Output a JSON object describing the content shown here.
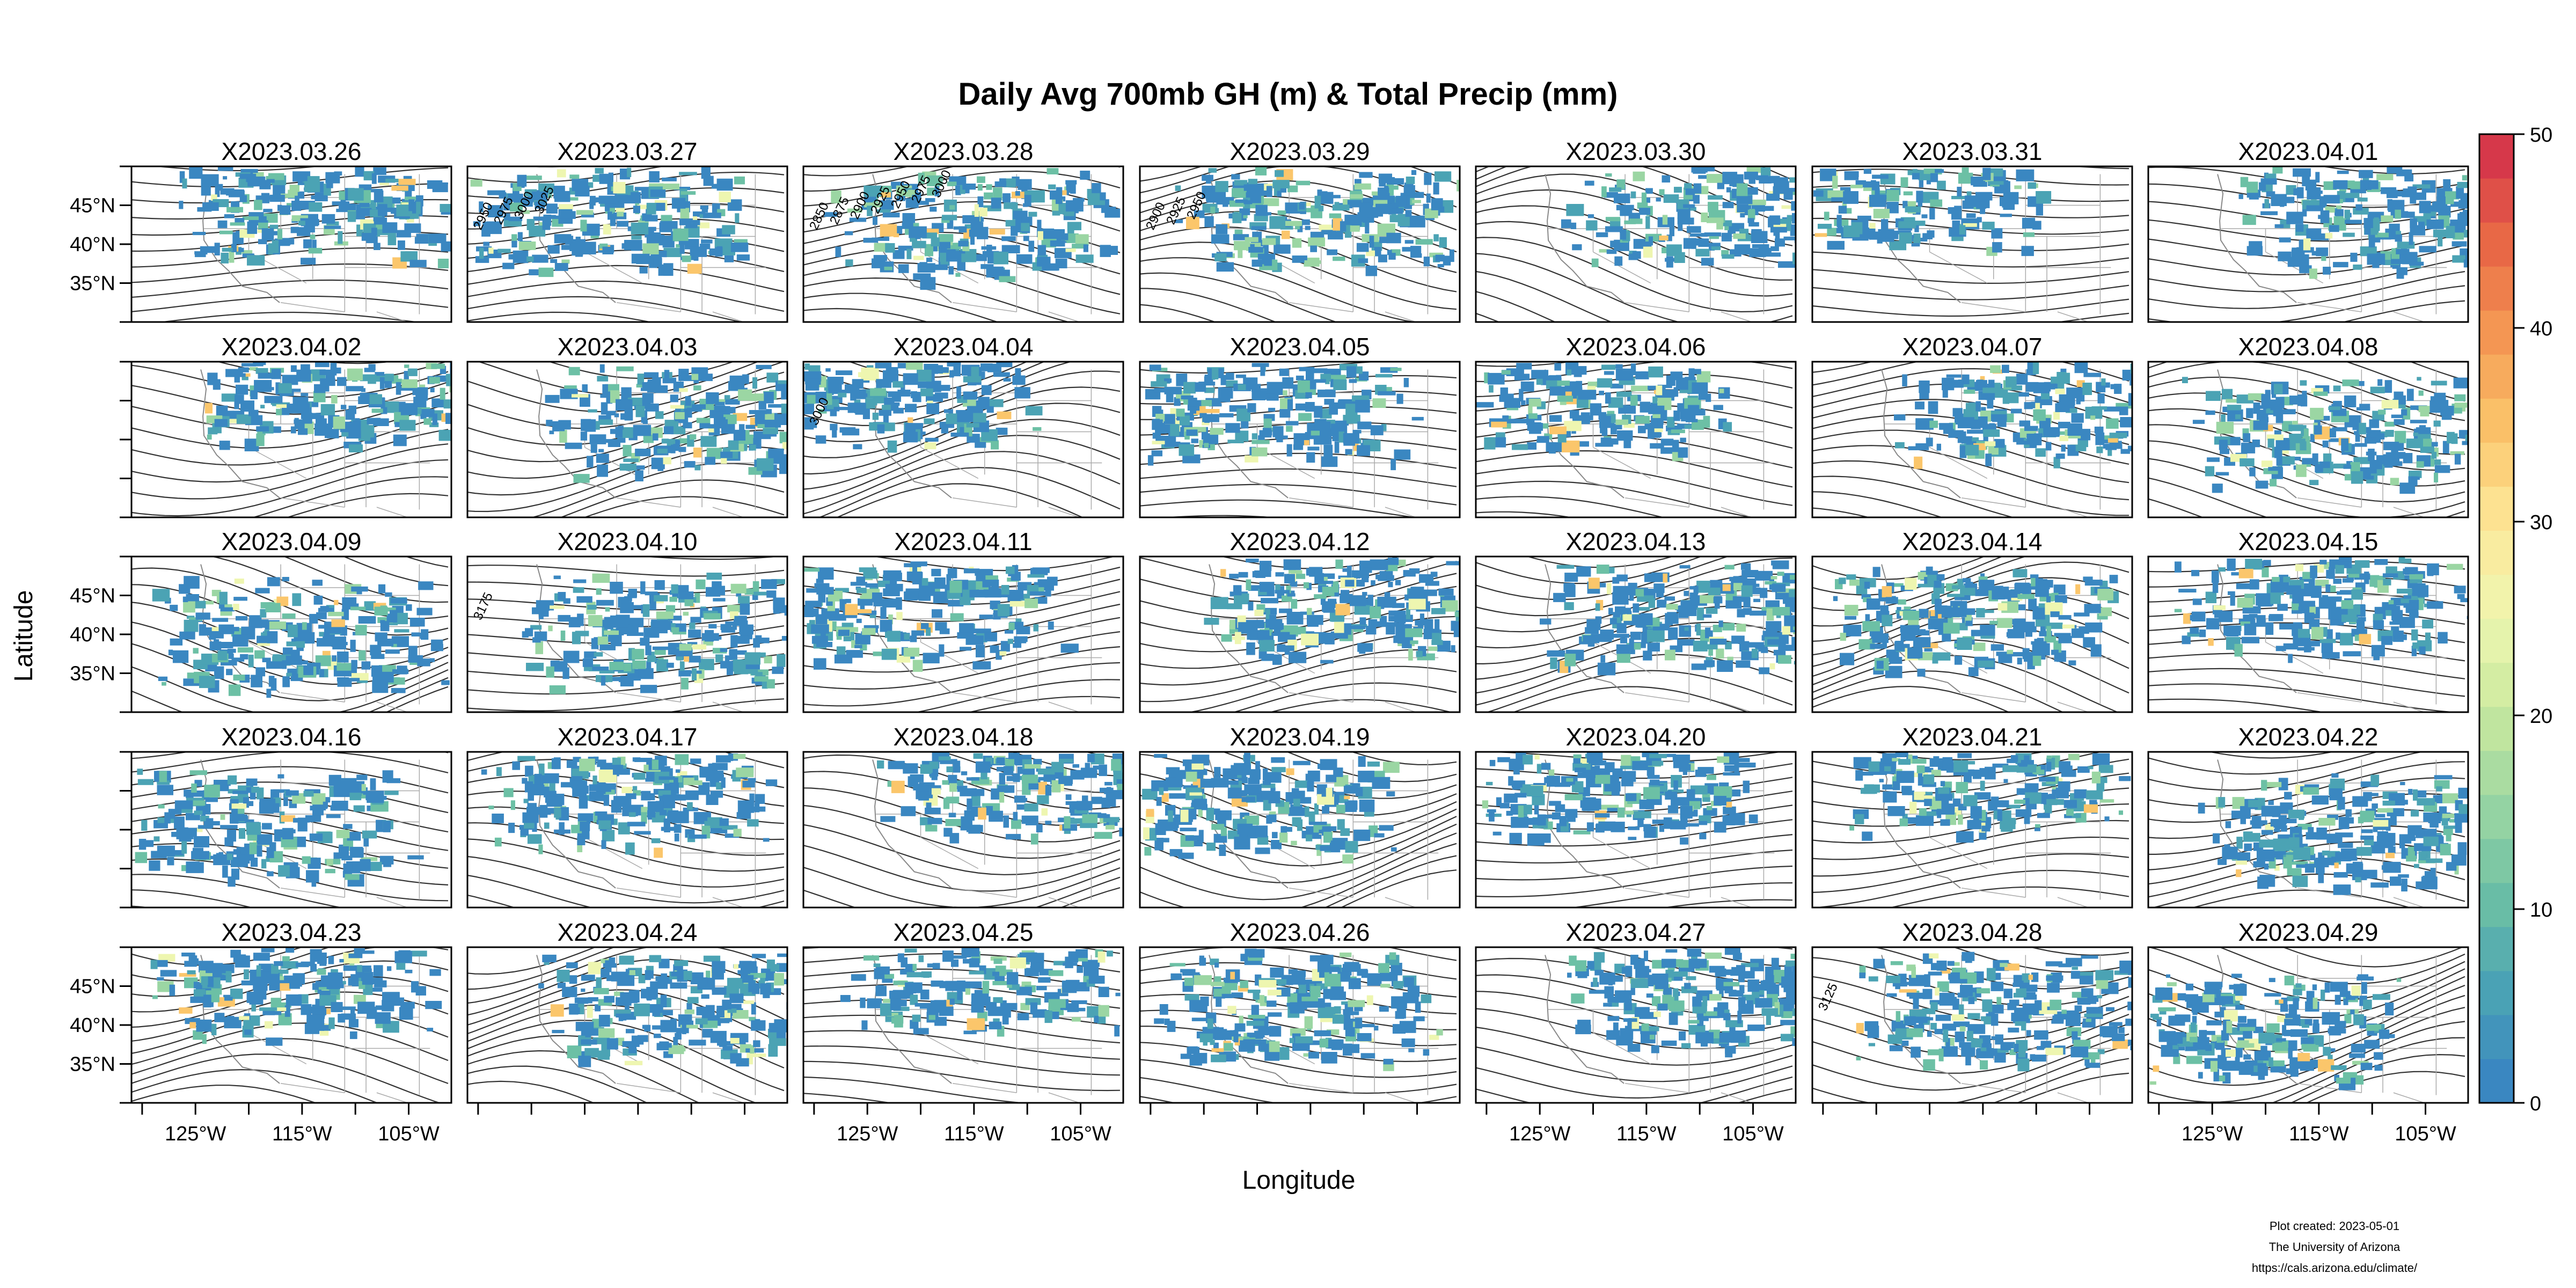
{
  "chart_data": {
    "type": "heatmap",
    "title": "Daily Avg 700mb GH (m) & Total Precip (mm)",
    "xlabel": "Longitude",
    "ylabel": "Latitude",
    "panel_titles": [
      "X2023.03.26",
      "X2023.03.27",
      "X2023.03.28",
      "X2023.03.29",
      "X2023.03.30",
      "X2023.03.31",
      "X2023.04.01",
      "X2023.04.02",
      "X2023.04.03",
      "X2023.04.04",
      "X2023.04.05",
      "X2023.04.06",
      "X2023.04.07",
      "X2023.04.08",
      "X2023.04.09",
      "X2023.04.10",
      "X2023.04.11",
      "X2023.04.12",
      "X2023.04.13",
      "X2023.04.14",
      "X2023.04.15",
      "X2023.04.16",
      "X2023.04.17",
      "X2023.04.18",
      "X2023.04.19",
      "X2023.04.20",
      "X2023.04.21",
      "X2023.04.22",
      "X2023.04.23",
      "X2023.04.24",
      "X2023.04.25",
      "X2023.04.26",
      "X2023.04.27",
      "X2023.04.28",
      "X2023.04.29"
    ],
    "x_ticks": [
      "125°W",
      "115°W",
      "105°W"
    ],
    "y_ticks": [
      "45°N",
      "40°N",
      "35°N"
    ],
    "colorbar": {
      "ticks": [
        "0",
        "10",
        "20",
        "30",
        "40",
        "50"
      ],
      "range": [
        0,
        50
      ],
      "colors": [
        "#3a87c1",
        "#4ba3b4",
        "#6cc0a5",
        "#9bd6a3",
        "#c9e99e",
        "#eef6b0",
        "#fde89a",
        "#fbc66b",
        "#f59b54",
        "#e96a46",
        "#d6384a"
      ]
    },
    "contour_labels": [
      {
        "panel": 1,
        "texts": [
          "2950",
          "2975",
          "3000",
          "3025"
        ]
      },
      {
        "panel": 2,
        "texts": [
          "2850",
          "2875",
          "2900",
          "2925",
          "2950",
          "2975",
          "3000"
        ]
      },
      {
        "panel": 3,
        "texts": [
          "2900",
          "2925",
          "2950"
        ]
      },
      {
        "panel": 9,
        "texts": [
          "3000"
        ]
      },
      {
        "panel": 15,
        "texts": [
          "3175"
        ]
      },
      {
        "panel": 33,
        "texts": [
          "3125"
        ]
      }
    ],
    "footer": [
      "Plot created: 2023-05-01",
      "The University of Arizona",
      "https://cals.arizona.edu/climate/"
    ]
  }
}
